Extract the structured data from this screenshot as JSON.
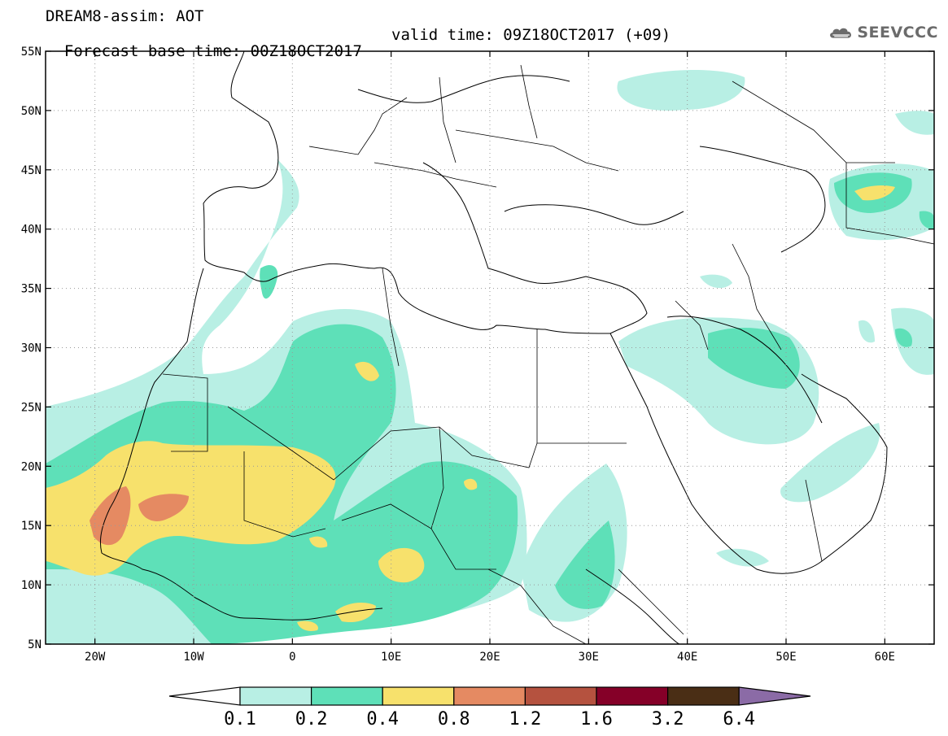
{
  "title": {
    "line1": "DREAM8-assim: AOT",
    "base_time": "Forecast base time: 00Z18OCT2017",
    "valid_time": "valid time: 09Z18OCT2017 (+09)"
  },
  "logo": {
    "text": "SEEVCCC",
    "icon": "cloud-icon",
    "color": "#6b6b6b"
  },
  "map": {
    "lon_range": [
      -25,
      65
    ],
    "lat_range": [
      5,
      55
    ],
    "lat_ticks": [
      {
        "value": 55,
        "label": "55N"
      },
      {
        "value": 50,
        "label": "50N"
      },
      {
        "value": 45,
        "label": "45N"
      },
      {
        "value": 40,
        "label": "40N"
      },
      {
        "value": 35,
        "label": "35N"
      },
      {
        "value": 30,
        "label": "30N"
      },
      {
        "value": 25,
        "label": "25N"
      },
      {
        "value": 20,
        "label": "20N"
      },
      {
        "value": 15,
        "label": "15N"
      },
      {
        "value": 10,
        "label": "10N"
      },
      {
        "value": 5,
        "label": "5N"
      }
    ],
    "lon_ticks": [
      {
        "value": -20,
        "label": "20W"
      },
      {
        "value": -10,
        "label": "10W"
      },
      {
        "value": 0,
        "label": "0"
      },
      {
        "value": 10,
        "label": "10E"
      },
      {
        "value": 20,
        "label": "20E"
      },
      {
        "value": 30,
        "label": "30E"
      },
      {
        "value": 40,
        "label": "40E"
      },
      {
        "value": 50,
        "label": "50E"
      },
      {
        "value": 60,
        "label": "60E"
      }
    ],
    "grid": true
  },
  "colorbar": {
    "levels": [
      "0.1",
      "0.2",
      "0.4",
      "0.8",
      "1.2",
      "1.6",
      "3.2",
      "6.4"
    ],
    "colors": [
      "#ffffff",
      "#b8efe4",
      "#5ee0b8",
      "#f7e16c",
      "#e58a62",
      "#b5523f",
      "#850028",
      "#4a2e15",
      "#8b6ba6"
    ]
  }
}
